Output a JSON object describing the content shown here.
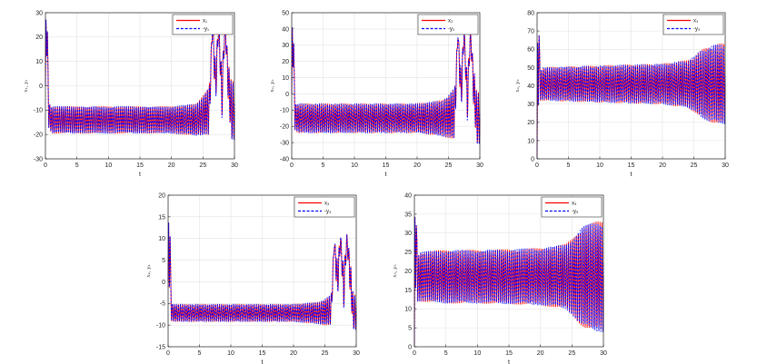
{
  "chart_data": [
    {
      "type": "line",
      "xlabel": "t",
      "ylabel": "x₁, y₁",
      "xlim": [
        0,
        30
      ],
      "ylim": [
        -30,
        30
      ],
      "xticks": [
        0,
        5,
        10,
        15,
        20,
        25,
        30
      ],
      "yticks": [
        -30,
        -20,
        -10,
        0,
        10,
        20,
        30
      ],
      "grid": true,
      "legend_position": "top-right",
      "series": [
        {
          "name": "x₁",
          "color": "#ff0000",
          "style": "solid"
        },
        {
          "name": "-y₁",
          "color": "#0000ff",
          "style": "dashed"
        }
      ],
      "x": [
        0,
        0.1,
        0.2,
        0.3,
        0.5,
        1,
        5,
        10,
        15,
        20,
        24,
        25,
        26,
        26.5,
        27,
        27.5,
        28,
        28.5,
        29,
        29.5,
        30
      ],
      "band_center": [
        0,
        30,
        8,
        25,
        -12,
        -14,
        -14,
        -14,
        -14,
        -14,
        -14,
        -12,
        -10,
        24,
        0,
        25,
        -5,
        26,
        2,
        -10,
        -10
      ],
      "band_amplitude": [
        0,
        0,
        0,
        0,
        5,
        5.5,
        5.5,
        5.5,
        5.5,
        5.5,
        6.5,
        8,
        10,
        2,
        10,
        2,
        10,
        2,
        8,
        12,
        12
      ]
    },
    {
      "type": "line",
      "xlabel": "t",
      "ylabel": "x₂, y₂",
      "xlim": [
        0,
        30
      ],
      "ylim": [
        -40,
        50
      ],
      "xticks": [
        0,
        5,
        10,
        15,
        20,
        25,
        30
      ],
      "yticks": [
        -40,
        -30,
        -20,
        -10,
        0,
        10,
        20,
        30,
        40,
        50
      ],
      "grid": true,
      "legend_position": "top-right",
      "series": [
        {
          "name": "x₂",
          "color": "#ff0000",
          "style": "solid"
        },
        {
          "name": "-y₂",
          "color": "#0000ff",
          "style": "dashed"
        }
      ],
      "x": [
        0,
        0.1,
        0.2,
        0.3,
        0.5,
        1,
        5,
        10,
        15,
        20,
        24,
        25,
        26,
        26.5,
        27,
        27.5,
        28,
        28.5,
        29,
        29.5,
        30
      ],
      "band_center": [
        0,
        45,
        10,
        35,
        -14,
        -15,
        -15,
        -15,
        -15,
        -15,
        -15,
        -14,
        -12,
        37,
        0,
        38,
        -5,
        38,
        5,
        -15,
        -15
      ],
      "band_amplitude": [
        0,
        0,
        0,
        0,
        8,
        9,
        9,
        9,
        9,
        9,
        11,
        13,
        16,
        2,
        15,
        2,
        14,
        2,
        12,
        16,
        16
      ]
    },
    {
      "type": "line",
      "xlabel": "t",
      "ylabel": "x₃, y₃",
      "xlim": [
        0,
        30
      ],
      "ylim": [
        0,
        80
      ],
      "xticks": [
        0,
        5,
        10,
        15,
        20,
        25,
        30
      ],
      "yticks": [
        0,
        10,
        20,
        30,
        40,
        50,
        60,
        70,
        80
      ],
      "grid": true,
      "legend_position": "top-right",
      "series": [
        {
          "name": "x₃",
          "color": "#ff0000",
          "style": "solid"
        },
        {
          "name": "-y₃",
          "color": "#0000ff",
          "style": "dashed"
        }
      ],
      "x": [
        0,
        0.1,
        0.2,
        0.3,
        0.5,
        1,
        5,
        10,
        15,
        20,
        24,
        25,
        26,
        27,
        28,
        29,
        30
      ],
      "band_center": [
        0,
        70,
        20,
        70,
        40,
        41,
        41,
        41,
        41,
        41,
        41,
        41,
        41,
        41,
        41,
        41,
        41
      ],
      "band_amplitude": [
        0,
        0,
        0,
        0,
        8,
        9,
        9.5,
        10,
        10.5,
        11,
        13,
        15,
        18,
        20,
        21,
        22,
        22
      ]
    },
    {
      "type": "line",
      "xlabel": "t",
      "ylabel": "x₄, y₄",
      "xlim": [
        0,
        30
      ],
      "ylim": [
        -15,
        20
      ],
      "xticks": [
        0,
        5,
        10,
        15,
        20,
        25,
        30
      ],
      "yticks": [
        -15,
        -10,
        -5,
        0,
        5,
        10,
        15,
        20
      ],
      "grid": true,
      "legend_position": "top-right",
      "series": [
        {
          "name": "x₄",
          "color": "#ff0000",
          "style": "solid"
        },
        {
          "name": "-y₄",
          "color": "#0000ff",
          "style": "dashed"
        }
      ],
      "x": [
        0,
        0.1,
        0.2,
        0.3,
        0.5,
        1,
        5,
        10,
        15,
        20,
        24,
        25,
        26,
        26.5,
        27,
        27.5,
        28,
        28.5,
        29,
        29.5,
        30
      ],
      "band_center": [
        0,
        15,
        -5,
        12,
        -7,
        -7.2,
        -7.2,
        -7.2,
        -7.2,
        -7.2,
        -7.2,
        -7,
        -6.5,
        9,
        0,
        10,
        -2,
        10,
        2,
        -7,
        -7
      ],
      "band_amplitude": [
        0,
        0,
        0,
        0,
        2,
        2,
        2,
        2,
        2,
        2,
        2.5,
        3,
        3.5,
        1,
        5,
        1,
        5,
        1,
        4,
        4,
        4
      ]
    },
    {
      "type": "line",
      "xlabel": "t",
      "ylabel": "x₅, y₅",
      "xlim": [
        0,
        30
      ],
      "ylim": [
        0,
        40
      ],
      "xticks": [
        0,
        5,
        10,
        15,
        20,
        25,
        30
      ],
      "yticks": [
        0,
        5,
        10,
        15,
        20,
        25,
        30,
        35,
        40
      ],
      "grid": true,
      "legend_position": "top-right",
      "series": [
        {
          "name": "x₅",
          "color": "#ff0000",
          "style": "solid"
        },
        {
          "name": "-y₅",
          "color": "#0000ff",
          "style": "dashed"
        }
      ],
      "x": [
        0,
        0.1,
        0.2,
        0.3,
        0.5,
        1,
        5,
        10,
        15,
        20,
        24,
        25,
        26,
        27,
        28,
        29,
        30
      ],
      "band_center": [
        0,
        38,
        10,
        33,
        18,
        18.5,
        18.5,
        18.5,
        18.5,
        18.5,
        18.5,
        18.5,
        18.5,
        18.5,
        18.5,
        18.5,
        18.5
      ],
      "band_amplitude": [
        0,
        0,
        0,
        0,
        6,
        6.5,
        7,
        7,
        7.2,
        7.5,
        8.5,
        10,
        12,
        13.5,
        14,
        14.5,
        14.5
      ]
    }
  ]
}
